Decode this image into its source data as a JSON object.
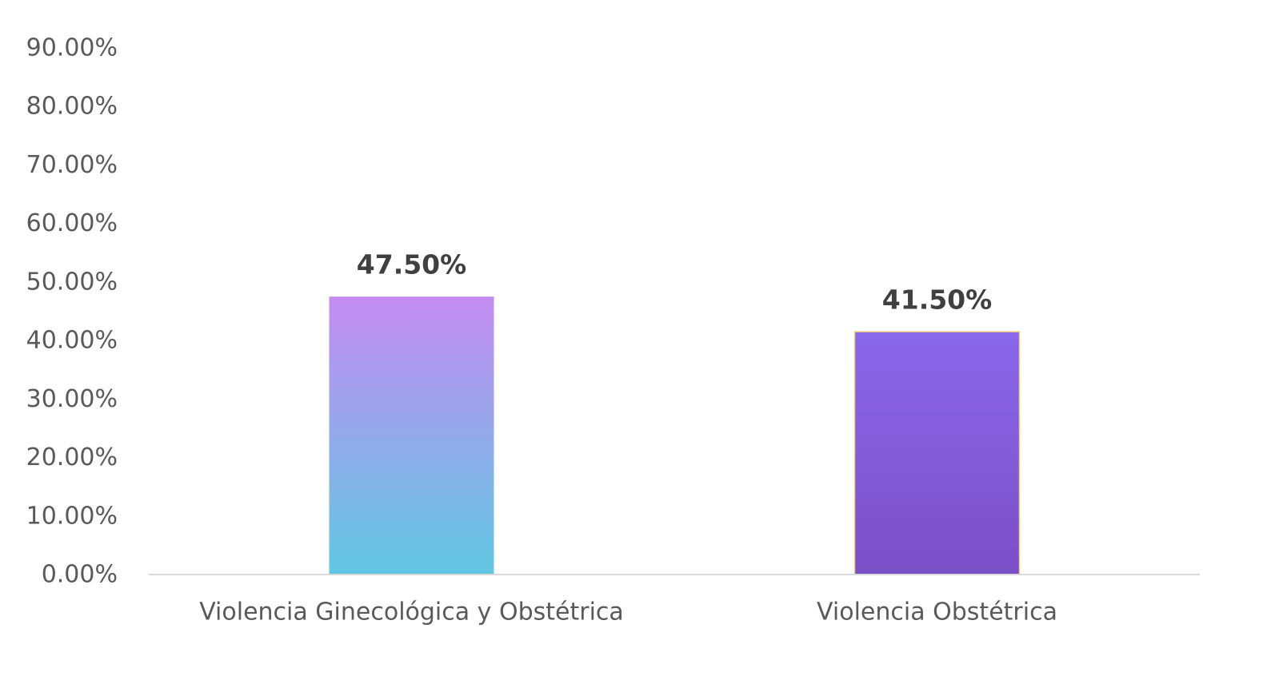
{
  "chart_data": {
    "type": "bar",
    "categories": [
      "Violencia Ginecológica y Obstétrica",
      "Violencia Obstétrica"
    ],
    "values": [
      47.5,
      41.5
    ],
    "data_labels": [
      "47.50%",
      "41.50%"
    ],
    "title": "",
    "xlabel": "",
    "ylabel": "",
    "ylim": [
      0,
      90
    ],
    "y_ticks": [
      0,
      10,
      20,
      30,
      40,
      50,
      60,
      70,
      80,
      90
    ],
    "y_tick_labels": [
      "0.00%",
      "10.00%",
      "20.00%",
      "30.00%",
      "40.00%",
      "50.00%",
      "60.00%",
      "70.00%",
      "80.00%",
      "90.00%"
    ],
    "grid": false,
    "legend": "none",
    "colors": {
      "bar1_top": "#C48CF2",
      "bar1_bottom": "#62C8E3",
      "bar2_top": "#8A68EB",
      "bar2_bottom": "#7B4FC6",
      "bar2_outline": "#F2D07A",
      "axis_line": "#D9D9D9"
    }
  }
}
